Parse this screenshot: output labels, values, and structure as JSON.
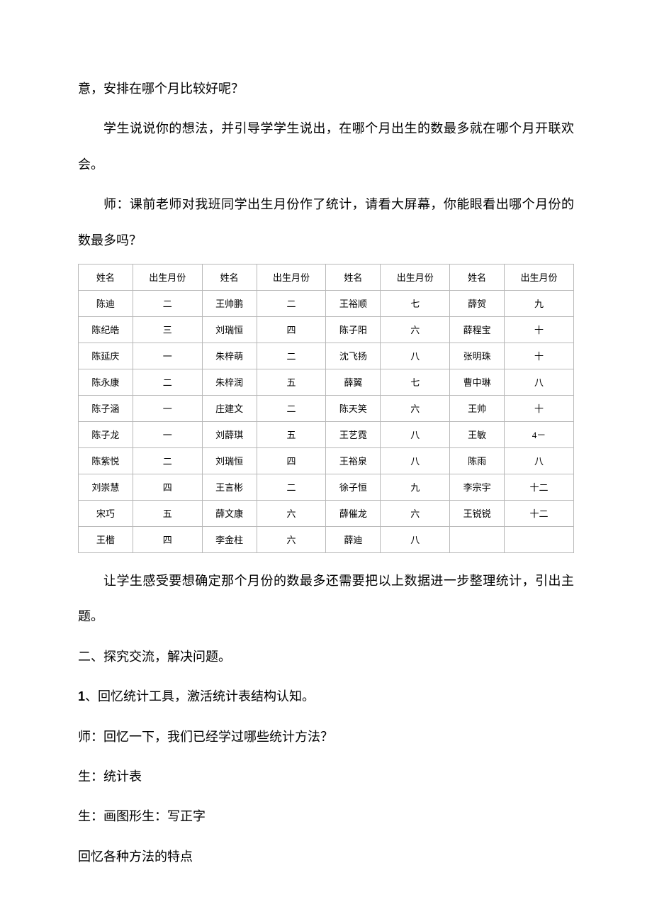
{
  "paragraphs": {
    "p1": "意，安排在哪个月比较好呢？",
    "p2": "学生说说你的想法，并引导学学生说出，在哪个月出生的数最多就在哪个月开联欢会。",
    "p3": "师：课前老师对我班同学出生月份作了统计，请看大屏幕，你能眼看出哪个月份的数最多吗？",
    "p4": "让学生感受要想确定那个月份的数最多还需要把以上数据进一步整理统计，引出主题。",
    "p5": "二、探究交流，解决问题。",
    "p6a": "1",
    "p6b": "、回忆统计工具，激活统计表结构认知。",
    "p7": "师：回忆一下，我们已经学过哪些统计方法？",
    "p8": "生：统计表",
    "p9": "生：画图形生：写正字",
    "p10": "回忆各种方法的特点"
  },
  "table": {
    "headers": [
      "姓名",
      "出生月份",
      "姓名",
      "出生月份",
      "姓名",
      "出生月份",
      "姓名",
      "出生月份"
    ],
    "rows": [
      [
        "陈迪",
        "二",
        "王帅鹏",
        "二",
        "王裕顺",
        "七",
        "薛贺",
        "九"
      ],
      [
        "陈纪皓",
        "三",
        "刘瑞恒",
        "四",
        "陈子阳",
        "六",
        "薛程宝",
        "十"
      ],
      [
        "陈延庆",
        "一",
        "朱梓萌",
        "二",
        "沈飞扬",
        "八",
        "张明珠",
        "十"
      ],
      [
        "陈永康",
        "二",
        "朱梓润",
        "五",
        "薛翼",
        "七",
        "曹中琳",
        "八"
      ],
      [
        "陈子涵",
        "一",
        "庄建文",
        "二",
        "陈天笑",
        "六",
        "王帅",
        "十"
      ],
      [
        "陈子龙",
        "一",
        "刘薛琪",
        "五",
        "王艺霓",
        "八",
        "王敏",
        "4－"
      ],
      [
        "陈紫悦",
        "二",
        "刘瑞恒",
        "四",
        "王裕泉",
        "八",
        "陈雨",
        "八"
      ],
      [
        "刘崇慧",
        "四",
        "王言彬",
        "二",
        "徐子恒",
        "九",
        "李宗宇",
        "十二"
      ],
      [
        "宋巧",
        "五",
        "薛文康",
        "六",
        "薛催龙",
        "六",
        "王锐锐",
        "十二"
      ],
      [
        "王楷",
        "四",
        "李金柱",
        "六",
        "薛迪",
        "八",
        "",
        ""
      ]
    ]
  }
}
